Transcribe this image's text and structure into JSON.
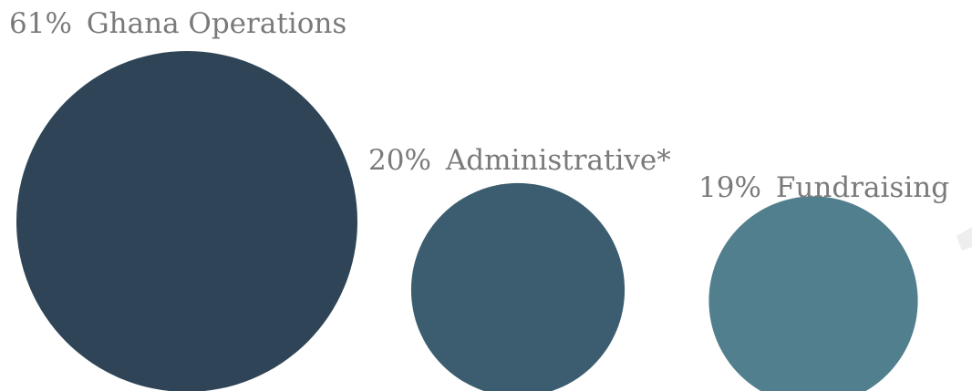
{
  "chart_data": {
    "type": "bubble",
    "title": "",
    "items": [
      {
        "percent_label": "61%",
        "category": "Ghana Operations",
        "value": 61,
        "color": "#2f4557"
      },
      {
        "percent_label": "20%",
        "category": "Administrative*",
        "value": 20,
        "color": "#3c5d70"
      },
      {
        "percent_label": "19%",
        "category": "Fundraising",
        "value": 19,
        "color": "#527f8d"
      }
    ]
  },
  "decoration": {
    "corner_mark_color": "#eeeeee"
  }
}
